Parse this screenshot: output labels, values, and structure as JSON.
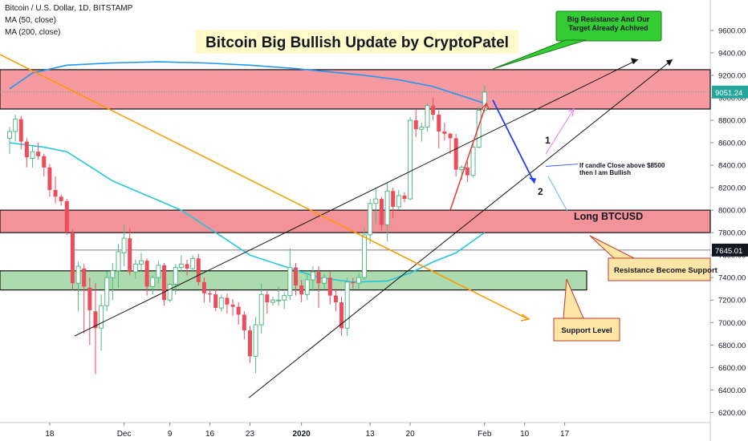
{
  "header": {
    "symbol": "Bitcoin / U.S. Dollar, 1D, BITSTAMP",
    "ma50": "MA (50, close)",
    "ma200": "MA (200, close)"
  },
  "chart_data": {
    "type": "candlestick",
    "title": "Bitcoin Big Bullish Update by CryptoPatel",
    "y_axis": {
      "ticks": [
        6200,
        6400,
        6600,
        6800,
        7000,
        7200,
        7400,
        7600,
        7800,
        8000,
        8200,
        8400,
        8600,
        8800,
        9000,
        9200,
        9400,
        9600
      ],
      "tick_labels": [
        "6200.00",
        "6400.00",
        "6600.00",
        "6800.00",
        "7000.00",
        "7200.00",
        "7400.00",
        "7600.00",
        "7800.00",
        "8000.00",
        "8200.00",
        "8400.00",
        "8600.00",
        "8800.00",
        "9000.00",
        "9200.00",
        "9400.00",
        "9600.00"
      ],
      "range": [
        6110,
        9870
      ]
    },
    "x_axis": {
      "tick_labels": [
        "18",
        "Dec",
        "9",
        "16",
        "23",
        "2020",
        "13",
        "20",
        "Feb",
        "10",
        "17"
      ],
      "tick_days": [
        7,
        20,
        28,
        35,
        42,
        51,
        63,
        70,
        83,
        90,
        97
      ]
    },
    "price_labels": {
      "last": "9051.24",
      "marker": "7645.01"
    },
    "candles": [
      [
        0,
        8640,
        8740,
        8500,
        8700
      ],
      [
        1,
        8700,
        8850,
        8610,
        8810
      ],
      [
        2,
        8810,
        8840,
        8540,
        8610
      ],
      [
        3,
        8610,
        8640,
        8380,
        8470
      ],
      [
        4,
        8460,
        8580,
        8380,
        8520
      ],
      [
        5,
        8520,
        8600,
        8450,
        8480
      ],
      [
        6,
        8480,
        8500,
        8300,
        8380
      ],
      [
        7,
        8380,
        8410,
        8120,
        8180
      ],
      [
        8,
        8180,
        8300,
        8060,
        8120
      ],
      [
        9,
        8120,
        8140,
        8040,
        8080
      ],
      [
        10,
        8080,
        8100,
        7780,
        7810
      ],
      [
        11,
        7800,
        7830,
        7290,
        7350
      ],
      [
        12,
        7350,
        7540,
        7100,
        7500
      ],
      [
        13,
        7480,
        7520,
        6900,
        7320
      ],
      [
        14,
        7310,
        7400,
        6800,
        7110
      ],
      [
        15,
        7100,
        7350,
        6540,
        6950
      ],
      [
        16,
        6950,
        7250,
        6750,
        7150
      ],
      [
        17,
        7150,
        7460,
        7100,
        7400
      ],
      [
        18,
        7400,
        7530,
        7200,
        7460
      ],
      [
        19,
        7460,
        7700,
        7310,
        7630
      ],
      [
        20,
        7620,
        7870,
        7500,
        7750
      ],
      [
        21,
        7750,
        7840,
        7420,
        7450
      ],
      [
        22,
        7450,
        7560,
        7390,
        7520
      ],
      [
        23,
        7520,
        7620,
        7460,
        7550
      ],
      [
        24,
        7550,
        7570,
        7240,
        7320
      ],
      [
        25,
        7320,
        7420,
        7250,
        7400
      ],
      [
        26,
        7400,
        7550,
        7350,
        7510
      ],
      [
        27,
        7510,
        7530,
        7150,
        7200
      ],
      [
        28,
        7200,
        7350,
        7180,
        7340
      ],
      [
        29,
        7340,
        7520,
        7250,
        7490
      ],
      [
        30,
        7490,
        7600,
        7450,
        7520
      ],
      [
        31,
        7520,
        7560,
        7420,
        7480
      ],
      [
        32,
        7480,
        7600,
        7450,
        7570
      ],
      [
        33,
        7570,
        7610,
        7330,
        7360
      ],
      [
        34,
        7360,
        7400,
        7180,
        7260
      ],
      [
        35,
        7260,
        7300,
        7180,
        7250
      ],
      [
        36,
        7250,
        7300,
        7100,
        7130
      ],
      [
        37,
        7130,
        7250,
        7100,
        7220
      ],
      [
        38,
        7220,
        7260,
        7080,
        7160
      ],
      [
        39,
        7160,
        7210,
        7060,
        7140
      ],
      [
        40,
        7140,
        7180,
        6980,
        7070
      ],
      [
        41,
        7070,
        7100,
        6850,
        6930
      ],
      [
        42,
        6930,
        6970,
        6640,
        6700
      ],
      [
        43,
        6700,
        7050,
        6550,
        6980
      ],
      [
        44,
        6980,
        7350,
        6900,
        7250
      ],
      [
        45,
        7250,
        7280,
        7080,
        7180
      ],
      [
        46,
        7180,
        7230,
        7150,
        7200
      ],
      [
        47,
        7200,
        7320,
        7150,
        7200
      ],
      [
        48,
        7200,
        7270,
        7120,
        7240
      ],
      [
        49,
        7240,
        7660,
        7200,
        7490
      ],
      [
        50,
        7490,
        7530,
        7240,
        7330
      ],
      [
        51,
        7330,
        7380,
        7180,
        7250
      ],
      [
        52,
        7250,
        7420,
        7200,
        7380
      ],
      [
        53,
        7380,
        7500,
        7280,
        7450
      ],
      [
        54,
        7450,
        7500,
        7130,
        7350
      ],
      [
        55,
        7350,
        7430,
        7300,
        7400
      ],
      [
        56,
        7400,
        7450,
        7160,
        7240
      ],
      [
        57,
        7240,
        7300,
        7100,
        7180
      ],
      [
        58,
        7180,
        7230,
        6880,
        6950
      ],
      [
        59,
        6950,
        7400,
        6880,
        7360
      ],
      [
        60,
        7360,
        7400,
        7300,
        7350
      ],
      [
        61,
        7350,
        7440,
        7300,
        7400
      ],
      [
        62,
        7400,
        7840,
        7380,
        7780
      ],
      [
        63,
        7780,
        8100,
        7700,
        8060
      ],
      [
        64,
        8060,
        8200,
        7880,
        8100
      ],
      [
        65,
        8100,
        8120,
        7820,
        7870
      ],
      [
        66,
        7870,
        8240,
        7720,
        8170
      ],
      [
        67,
        8170,
        8200,
        7930,
        8030
      ],
      [
        68,
        8030,
        8180,
        8000,
        8130
      ],
      [
        69,
        8130,
        8160,
        8070,
        8100
      ],
      [
        70,
        8100,
        8830,
        8090,
        8800
      ],
      [
        71,
        8800,
        8900,
        8650,
        8720
      ],
      [
        72,
        8720,
        8780,
        8610,
        8740
      ],
      [
        73,
        8740,
        8950,
        8700,
        8930
      ],
      [
        74,
        8930,
        9000,
        8800,
        8850
      ],
      [
        75,
        8850,
        8890,
        8550,
        8700
      ],
      [
        76,
        8700,
        8780,
        8620,
        8680
      ],
      [
        77,
        8680,
        8690,
        8500,
        8640
      ],
      [
        78,
        8640,
        8680,
        8300,
        8360
      ],
      [
        79,
        8360,
        8400,
        8270,
        8380
      ],
      [
        80,
        8380,
        8430,
        8250,
        8310
      ],
      [
        81,
        8310,
        8600,
        8290,
        8560
      ],
      [
        82,
        8560,
        8920,
        8550,
        8890
      ],
      [
        83,
        8890,
        9110,
        8870,
        9050
      ]
    ],
    "zones": [
      {
        "type": "resistance",
        "from": 8900,
        "to": 9250,
        "color": "#f07880"
      },
      {
        "type": "support",
        "from": 7800,
        "to": 8000,
        "color": "#f07880",
        "label": "Long BTCUSD"
      },
      {
        "type": "support",
        "from": 7290,
        "to": 7460,
        "color": "#9fd4a0"
      }
    ],
    "annotations": [
      {
        "text": [
          "Big Resistance And Our",
          "Target Already Achived"
        ],
        "color": "#33cc33"
      },
      {
        "text": [
          "If candle Close above $8500",
          "then I am Bullish"
        ]
      },
      {
        "text": [
          "Resistance Become Support"
        ],
        "color": "#ffe6a6"
      },
      {
        "text": [
          "Support Level"
        ],
        "color": "#ffe6a6"
      },
      {
        "text": [
          "1"
        ]
      },
      {
        "text": [
          "2"
        ]
      }
    ],
    "colors": {
      "up": "#53b987",
      "down": "#eb4d5c",
      "ma50": "#26c6da",
      "ma200": "#2196f3",
      "diagonal": "#ff9800",
      "title_bg": "#fff9c4"
    }
  }
}
